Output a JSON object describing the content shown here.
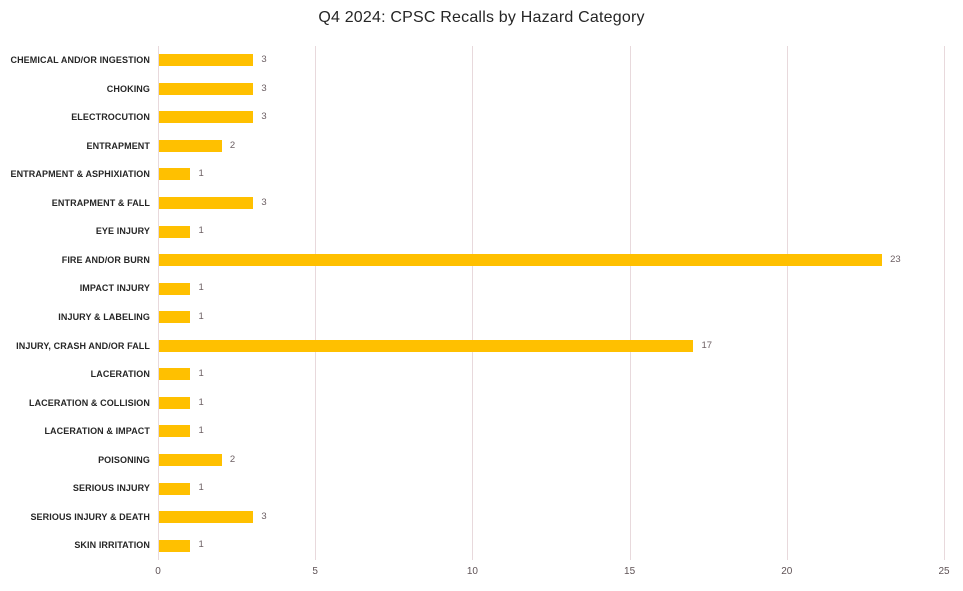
{
  "chart_data": {
    "type": "bar",
    "orientation": "horizontal",
    "title": "Q4 2024: CPSC Recalls by Hazard Category",
    "categories": [
      "CHEMICAL AND/OR INGESTION",
      "CHOKING",
      "ELECTROCUTION",
      "ENTRAPMENT",
      "ENTRAPMENT & ASPHIXIATION",
      "ENTRAPMENT & FALL",
      "EYE INJURY",
      "FIRE AND/OR BURN",
      "IMPACT INJURY",
      "INJURY & LABELING",
      "INJURY, CRASH AND/OR FALL",
      "LACERATION",
      "LACERATION & COLLISION",
      "LACERATION & IMPACT",
      "POISONING",
      "SERIOUS INJURY",
      "SERIOUS INJURY & DEATH",
      "SKIN IRRITATION"
    ],
    "values": [
      3,
      3,
      3,
      2,
      1,
      3,
      1,
      23,
      1,
      1,
      17,
      1,
      1,
      1,
      2,
      1,
      3,
      1
    ],
    "x_ticks": [
      0,
      5,
      10,
      15,
      20,
      25
    ],
    "xlim": [
      0,
      25
    ],
    "xlabel": "",
    "ylabel": "",
    "grid": "vertical-only",
    "legend": "none",
    "data_labels": "outside-end",
    "colors": {
      "bar": "#FFC000",
      "gridline": "#e8d9dc",
      "value_label": "#6d6064",
      "tick_label": "#5f5356",
      "category_label": "#262626",
      "title": "#262626",
      "background": "#ffffff"
    }
  }
}
